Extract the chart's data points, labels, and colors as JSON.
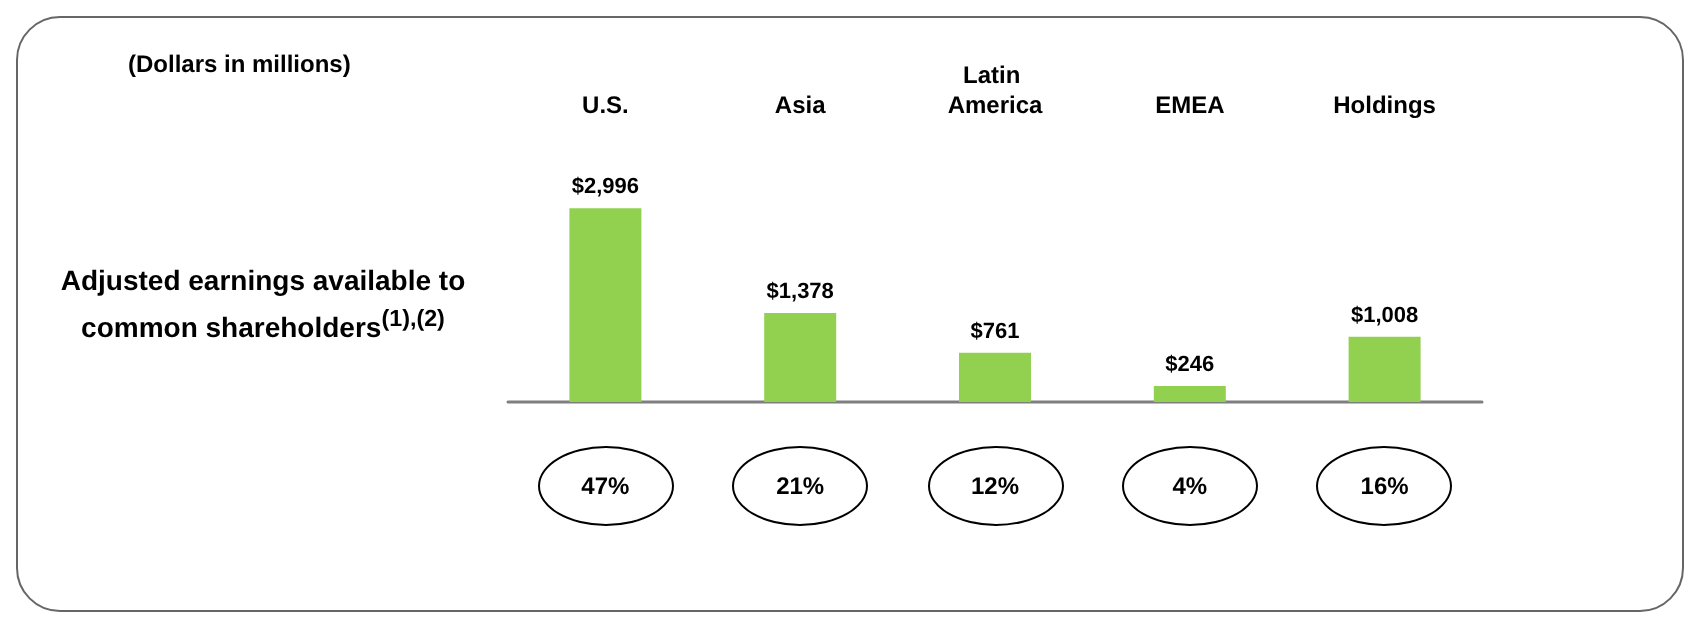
{
  "chart_data": {
    "type": "bar",
    "subtitle": "(Dollars in millions)",
    "ylabel": "Adjusted earnings available to common shareholders$^{(1),(2)}$",
    "categories": [
      "U.S.",
      "Asia",
      "Latin America",
      "EMEA",
      "Holdings"
    ],
    "values": [
      2996,
      1378,
      761,
      246,
      1008
    ],
    "value_labels": [
      "$2,996",
      "$1,378",
      "$761",
      "$246",
      "$1,008"
    ],
    "color": "#92d050",
    "annotations": [
      "47%",
      "21%",
      "12%",
      "4%",
      "16%"
    ],
    "grid": false
  }
}
